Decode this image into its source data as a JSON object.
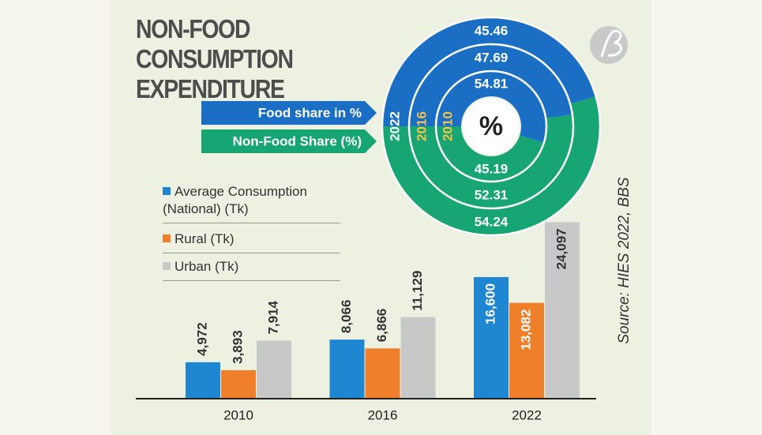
{
  "title": "NON-FOOD CONSUMPTION EXPENDITURE",
  "source": "Source: HIES 2022, BBS",
  "chart_data": [
    {
      "type": "bar",
      "categories": [
        "2010",
        "2016",
        "2022"
      ],
      "series": [
        {
          "name": "Average Consumption (National) (Tk)",
          "color": "#1f86d1",
          "values": [
            4972,
            8066,
            16600
          ],
          "value_labels": [
            "4,972",
            "8,066",
            "16,600"
          ]
        },
        {
          "name": "Rural (Tk)",
          "color": "#f07f2c",
          "values": [
            3893,
            6866,
            13082
          ],
          "value_labels": [
            "3,893",
            "6,866",
            "13,082"
          ]
        },
        {
          "name": "Urban (Tk)",
          "color": "#c8c8c8",
          "values": [
            7914,
            11129,
            24097
          ],
          "value_labels": [
            "7,914",
            "11,129",
            "24,097"
          ]
        }
      ],
      "ylim": [
        0,
        25000
      ]
    },
    {
      "type": "donut",
      "center_label": "%",
      "categories": [
        "Food share in %",
        "Non-Food Share (%)"
      ],
      "colors": [
        "#1a6fc4",
        "#17a673"
      ],
      "series": [
        {
          "name": "2022",
          "values": [
            45.46,
            54.24
          ]
        },
        {
          "name": "2016",
          "values": [
            47.69,
            52.31
          ]
        },
        {
          "name": "2010",
          "values": [
            54.81,
            45.19
          ]
        }
      ]
    }
  ]
}
